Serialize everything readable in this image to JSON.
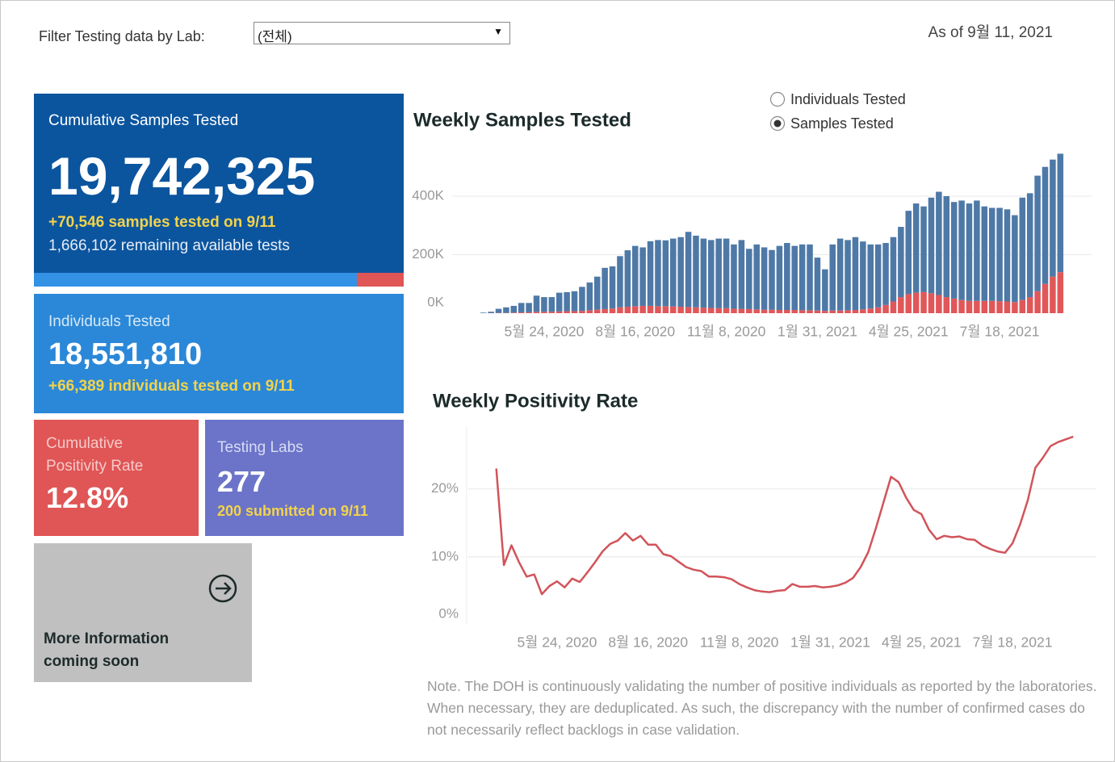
{
  "header": {
    "filter_label": "Filter Testing data by Lab:",
    "dropdown_value": "(전체)",
    "as_of": "As of 9월 11, 2021"
  },
  "cards": {
    "samples": {
      "title": "Cumulative Samples Tested",
      "value": "19,742,325",
      "delta": "+70,546 samples tested on 9/11",
      "remaining": "1,666,102 remaining available tests"
    },
    "individuals": {
      "title": "Individuals Tested",
      "value": "18,551,810",
      "delta": "+66,389  individuals  tested on 9/11"
    },
    "positivity": {
      "title": "Cumulative Positivity Rate",
      "value": "12.8%"
    },
    "labs": {
      "title": "Testing Labs",
      "value": "277",
      "delta": "200 submitted on 9/11"
    },
    "more_info": {
      "text": "More Information coming soon"
    }
  },
  "toggle": {
    "options": [
      "Individuals Tested",
      "Samples Tested"
    ],
    "selected": 1
  },
  "note": "Note. The DOH is continuously validating the number of positive individuals as reported by the laboratories. When necessary, they are deduplicated. As such, the discrepancy with the number of confirmed cases do not necessarily reflect backlogs in case validation.",
  "chart_data": [
    {
      "type": "bar",
      "title": "Weekly Samples Tested",
      "stacked": true,
      "grid": true,
      "categories": [
        null,
        null,
        null,
        null,
        null,
        null,
        null,
        null,
        "5월 24, 2020",
        null,
        null,
        null,
        null,
        null,
        null,
        null,
        null,
        null,
        null,
        null,
        "8월 16, 2020",
        null,
        null,
        null,
        null,
        null,
        null,
        null,
        null,
        null,
        null,
        null,
        "11월 8, 2020",
        null,
        null,
        null,
        null,
        null,
        null,
        null,
        null,
        null,
        null,
        null,
        "1월 31, 2021",
        null,
        null,
        null,
        null,
        null,
        null,
        null,
        null,
        null,
        null,
        null,
        "4월 25, 2021",
        null,
        null,
        null,
        null,
        null,
        null,
        null,
        null,
        null,
        null,
        null,
        "7월 18, 2021",
        null,
        null,
        null,
        null,
        null,
        null,
        null,
        null
      ],
      "series": [
        {
          "color": "#e15759",
          "values": [
            0,
            0,
            1000,
            1000,
            2000,
            3000,
            3000,
            5000,
            5000,
            5000,
            6000,
            7000,
            7000,
            8000,
            10000,
            12000,
            14000,
            16000,
            20000,
            22000,
            24000,
            25000,
            25000,
            24000,
            24000,
            23000,
            22000,
            21000,
            20000,
            19000,
            18000,
            17000,
            17000,
            15000,
            15000,
            14000,
            13000,
            12000,
            12000,
            11000,
            11000,
            11000,
            10000,
            10000,
            9000,
            8000,
            9000,
            9000,
            10000,
            11000,
            13000,
            16000,
            20000,
            28000,
            40000,
            55000,
            65000,
            70000,
            72000,
            68000,
            62000,
            55000,
            50000,
            45000,
            42000,
            42000,
            42000,
            42000,
            41000,
            40000,
            38000,
            45000,
            55000,
            75000,
            100000,
            125000,
            140000
          ]
        },
        {
          "color": "#4e79a7",
          "values": [
            2000,
            5000,
            14000,
            19000,
            23000,
            32000,
            32000,
            55000,
            50000,
            50000,
            64000,
            65000,
            68000,
            82000,
            95000,
            113000,
            141000,
            144000,
            175000,
            193000,
            206000,
            200000,
            221000,
            226000,
            225000,
            232000,
            238000,
            257000,
            245000,
            236000,
            232000,
            238000,
            238000,
            220000,
            235000,
            206000,
            222000,
            213000,
            204000,
            219000,
            229000,
            219000,
            225000,
            225000,
            181000,
            142000,
            226000,
            246000,
            240000,
            249000,
            232000,
            219000,
            215000,
            212000,
            220000,
            240000,
            285000,
            305000,
            293000,
            327000,
            353000,
            345000,
            330000,
            340000,
            333000,
            343000,
            323000,
            318000,
            319000,
            315000,
            297000,
            350000,
            355000,
            395000,
            400000,
            400000,
            405000
          ]
        }
      ],
      "ylim": [
        0,
        560000
      ],
      "yticks": [
        {
          "value": 0,
          "label": "0K"
        },
        {
          "value": 200000,
          "label": "200K"
        },
        {
          "value": 400000,
          "label": "400K"
        }
      ]
    },
    {
      "type": "line",
      "title": "Weekly Positivity Rate",
      "grid": true,
      "categories": [
        null,
        null,
        null,
        null,
        null,
        null,
        null,
        null,
        "5월 24, 2020",
        null,
        null,
        null,
        null,
        null,
        null,
        null,
        null,
        null,
        null,
        null,
        "8월 16, 2020",
        null,
        null,
        null,
        null,
        null,
        null,
        null,
        null,
        null,
        null,
        null,
        "11월 8, 2020",
        null,
        null,
        null,
        null,
        null,
        null,
        null,
        null,
        null,
        null,
        null,
        "1월 31, 2021",
        null,
        null,
        null,
        null,
        null,
        null,
        null,
        null,
        null,
        null,
        null,
        "4월 25, 2021",
        null,
        null,
        null,
        null,
        null,
        null,
        null,
        null,
        null,
        null,
        null,
        "7월 18, 2021",
        null,
        null,
        null,
        null,
        null,
        null,
        null,
        null
      ],
      "series": [
        {
          "color": "#d1545a",
          "values": [
            23,
            8.8,
            11.7,
            9.2,
            7.1,
            7.4,
            4.5,
            5.7,
            6.4,
            5.5,
            6.8,
            6.3,
            7.7,
            9.2,
            10.8,
            11.9,
            12.4,
            13.5,
            12.4,
            13.1,
            11.8,
            11.8,
            10.4,
            10.1,
            9.3,
            8.5,
            8.1,
            7.9,
            7.1,
            7.1,
            7.0,
            6.7,
            6.0,
            5.5,
            5.1,
            4.9,
            4.8,
            5.0,
            5.1,
            6.0,
            5.6,
            5.6,
            5.7,
            5.5,
            5.6,
            5.8,
            6.2,
            6.9,
            8.5,
            10.7,
            14.2,
            18.0,
            21.8,
            21.0,
            18.7,
            16.9,
            16.3,
            14.0,
            12.6,
            13.1,
            12.9,
            13.0,
            12.6,
            12.5,
            11.7,
            11.2,
            10.8,
            10.6,
            12.0,
            14.8,
            18.3,
            23.1,
            24.6,
            26.3,
            26.9,
            27.3,
            27.7
          ]
        }
      ],
      "ylim": [
        0,
        29
      ],
      "yticks": [
        {
          "value": 0,
          "label": "0%"
        },
        {
          "value": 10,
          "label": "10%"
        },
        {
          "value": 20,
          "label": "20%"
        }
      ]
    }
  ]
}
